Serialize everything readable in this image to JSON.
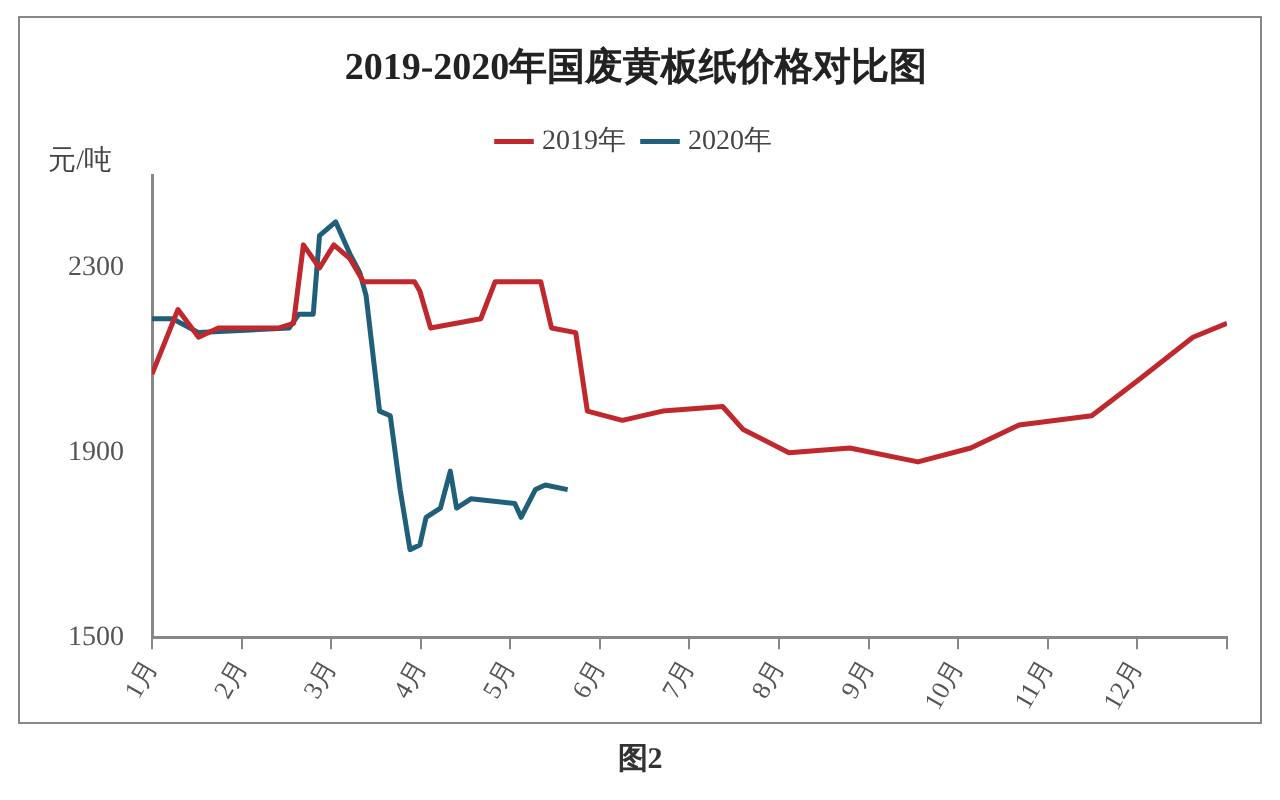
{
  "chart_data": {
    "type": "line",
    "title": "2019-2020年国废黄板纸价格对比图",
    "ylabel": "元/吨",
    "annotations": [
      "图2"
    ],
    "xlim": [
      1,
      13
    ],
    "xticks": [
      {
        "value": 1,
        "label": "1月"
      },
      {
        "value": 2,
        "label": "2月"
      },
      {
        "value": 3,
        "label": "3月"
      },
      {
        "value": 4,
        "label": "4月"
      },
      {
        "value": 5,
        "label": "5月"
      },
      {
        "value": 6,
        "label": "6月"
      },
      {
        "value": 7,
        "label": "7月"
      },
      {
        "value": 8,
        "label": "8月"
      },
      {
        "value": 9,
        "label": "9月"
      },
      {
        "value": 10,
        "label": "10月"
      },
      {
        "value": 11,
        "label": "11月"
      },
      {
        "value": 12,
        "label": "12月"
      },
      {
        "value": 13,
        "label": null
      }
    ],
    "ylim": [
      1500,
      2500
    ],
    "yticks": [
      1500,
      1900,
      2300
    ],
    "grid": false,
    "legend": "top",
    "marker": "none",
    "line_style": "solid",
    "series": [
      {
        "name": "2019年",
        "color": "#c0282d",
        "x": [
          1.0,
          1.29,
          1.52,
          1.74,
          2.42,
          2.58,
          2.69,
          2.87,
          3.03,
          3.21,
          3.36,
          3.93,
          3.99,
          4.11,
          4.67,
          4.83,
          5.34,
          5.46,
          5.73,
          5.86,
          6.25,
          6.7,
          7.37,
          7.6,
          8.11,
          8.79,
          9.55,
          10.14,
          10.68,
          11.49,
          12.03,
          12.62,
          13.0
        ],
        "values": [
          2070,
          2210,
          2150,
          2170,
          2170,
          2180,
          2350,
          2300,
          2350,
          2320,
          2270,
          2270,
          2250,
          2170,
          2190,
          2270,
          2270,
          2170,
          2160,
          1990,
          1970,
          1990,
          2000,
          1950,
          1900,
          1910,
          1880,
          1910,
          1960,
          1980,
          2060,
          2150,
          2180
        ]
      },
      {
        "name": "2020年",
        "color": "#1f5f7a",
        "x": [
          1.0,
          1.23,
          1.52,
          2.53,
          2.64,
          2.8,
          2.87,
          3.05,
          3.21,
          3.32,
          3.39,
          3.54,
          3.66,
          3.77,
          3.88,
          3.99,
          4.06,
          4.22,
          4.33,
          4.4,
          4.56,
          5.05,
          5.12,
          5.28,
          5.39,
          5.64
        ],
        "values": [
          2190,
          2190,
          2160,
          2170,
          2200,
          2200,
          2370,
          2400,
          2330,
          2290,
          2240,
          1990,
          1980,
          1820,
          1690,
          1700,
          1760,
          1780,
          1860,
          1780,
          1800,
          1790,
          1760,
          1820,
          1830,
          1820
        ]
      }
    ]
  }
}
